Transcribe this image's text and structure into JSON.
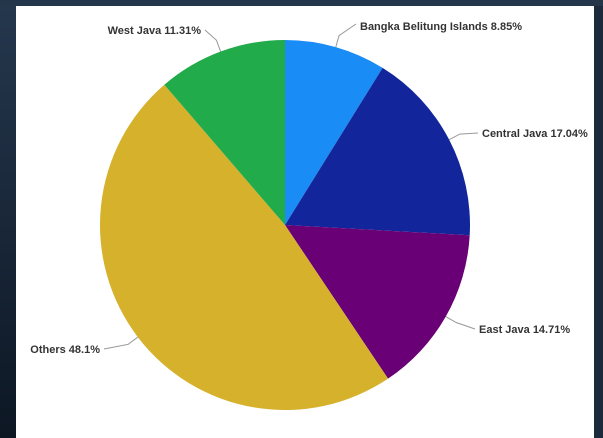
{
  "chart_data": {
    "type": "pie",
    "slices": [
      {
        "name": "Bangka Belitung Islands",
        "value": 8.85,
        "label": "Bangka Belitung Islands 8.85%",
        "color": "#1a8cf5"
      },
      {
        "name": "Central Java",
        "value": 17.04,
        "label": "Central Java 17.04%",
        "color": "#13259b"
      },
      {
        "name": "East Java",
        "value": 14.71,
        "label": "East Java 14.71%",
        "color": "#6a0075"
      },
      {
        "name": "Others",
        "value": 48.1,
        "label": "Others 48.1%",
        "color": "#d6b12c"
      },
      {
        "name": "West Java",
        "value": 11.31,
        "label": "West Java 11.31%",
        "color": "#22ab4a"
      }
    ],
    "start_angle_degrees": 0,
    "direction": "clockwise",
    "legend": "none",
    "grid": false
  }
}
